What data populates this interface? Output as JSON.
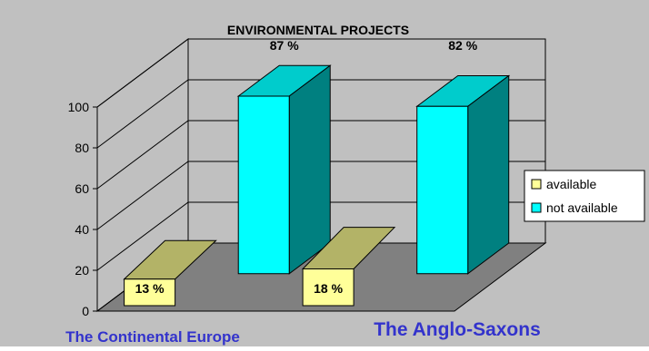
{
  "chart_data": {
    "type": "bar",
    "title": "ENVIRONMENTAL PROJECTS",
    "categories": [
      "The Continental Europe",
      "The Anglo-Saxons"
    ],
    "series": [
      {
        "name": "available",
        "values": [
          13,
          18
        ],
        "labels": [
          "13 %",
          "18 %"
        ],
        "color": "#ffff99"
      },
      {
        "name": "not available",
        "values": [
          87,
          82
        ],
        "labels": [
          "87 %",
          "82 %"
        ],
        "color": "#00ffff"
      }
    ],
    "yticks": [
      "0",
      "20",
      "40",
      "60",
      "80",
      "100"
    ],
    "ylim": [
      0,
      100
    ],
    "grid": true,
    "legend_position": "right",
    "colors": {
      "background": "#c0c0c0",
      "plot_area": "#c0c0c0",
      "gridline": "#000000",
      "available_front": "#ffff99",
      "available_side": "#b3b367",
      "not_available_front": "#00ffff",
      "not_available_top": "#00cccc",
      "not_available_side": "#008080",
      "category_label": "#3333cc"
    }
  }
}
